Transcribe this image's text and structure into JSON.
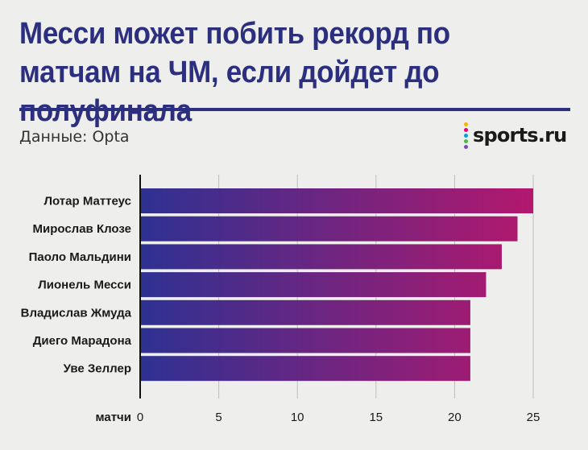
{
  "title": "Месси может побить рекорд по матчам на ЧМ, если дойдет до полуфинала",
  "source": "Данные: Opta",
  "logo": {
    "text": "sports.ru",
    "dot_colors": [
      "#f7b500",
      "#e6007e",
      "#00a0e3",
      "#4cb848",
      "#7a4bbd"
    ]
  },
  "colors": {
    "title": "#2b2f7e",
    "bar_start": "#2e3192",
    "bar_end": "#b3186d",
    "axis": "#111111"
  },
  "chart_data": {
    "type": "bar",
    "orientation": "horizontal",
    "categories": [
      "Лотар Маттеус",
      "Мирослав Клозе",
      "Паоло Мальдини",
      "Лионель Месси",
      "Владислав Жмуда",
      "Диего Марадона",
      "Уве Зеллер"
    ],
    "values": [
      25,
      24,
      23,
      22,
      21,
      21,
      21
    ],
    "xlabel": "матчи",
    "xlim": [
      0,
      25
    ],
    "xticks": [
      0,
      5,
      10,
      15,
      20,
      25
    ],
    "grid": true
  }
}
